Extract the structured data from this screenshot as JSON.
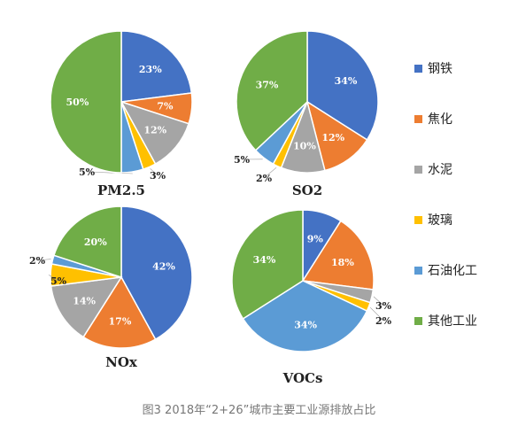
{
  "caption": "图3 2018年“2+26”城市主要工业源排放占比",
  "legend": [
    {
      "name": "钢铁",
      "color": "#4472C4"
    },
    {
      "name": "焦化",
      "color": "#ED7D31"
    },
    {
      "name": "水泥",
      "color": "#A5A5A5"
    },
    {
      "name": "玻璃",
      "color": "#FFC000"
    },
    {
      "name": "石油化工",
      "color": "#5B9BD5"
    },
    {
      "name": "其他工业",
      "color": "#70AD47"
    }
  ],
  "chart_data": [
    {
      "type": "pie",
      "title": "PM2.5",
      "categories": [
        "钢铁",
        "焦化",
        "水泥",
        "玻璃",
        "石油化工",
        "其他工业"
      ],
      "values": [
        23,
        7,
        12,
        3,
        5,
        50
      ],
      "labels": [
        "23%",
        "7%",
        "12%",
        "3%",
        "5%",
        "50%"
      ]
    },
    {
      "type": "pie",
      "title": "SO2",
      "categories": [
        "钢铁",
        "焦化",
        "水泥",
        "玻璃",
        "石油化工",
        "其他工业"
      ],
      "values": [
        34,
        12,
        10,
        2,
        5,
        37
      ],
      "labels": [
        "34%",
        "12%",
        "10%",
        "2%",
        "5%",
        "37%"
      ]
    },
    {
      "type": "pie",
      "title": "NOx",
      "categories": [
        "钢铁",
        "焦化",
        "水泥",
        "玻璃",
        "石油化工",
        "其他工业"
      ],
      "values": [
        42,
        17,
        14,
        5,
        2,
        20
      ],
      "labels": [
        "42%",
        "17%",
        "14%",
        "5%",
        "2%",
        "20%"
      ]
    },
    {
      "type": "pie",
      "title": "VOCs",
      "categories": [
        "钢铁",
        "焦化",
        "水泥",
        "玻璃",
        "石油化工",
        "其他工业"
      ],
      "values": [
        9,
        18,
        3,
        2,
        34,
        34
      ],
      "labels": [
        "9%",
        "18%",
        "3%",
        "2%",
        "34%",
        "34%"
      ]
    }
  ]
}
